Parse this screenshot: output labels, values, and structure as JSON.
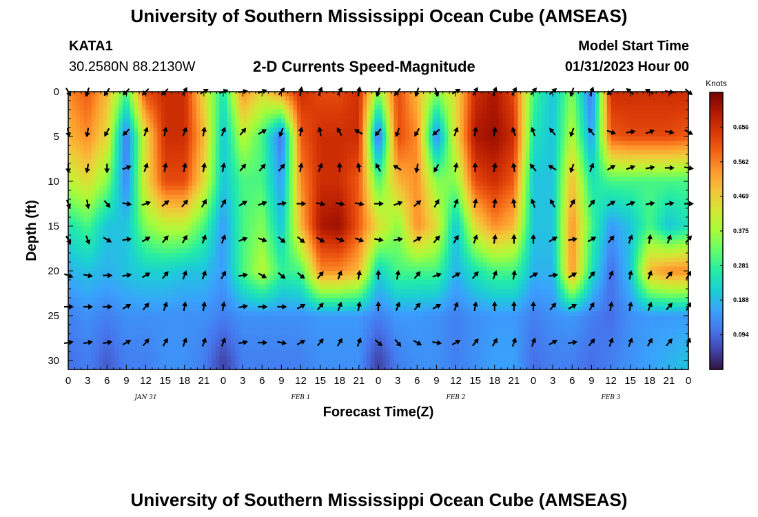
{
  "header": {
    "title": "University of Southern Mississippi Ocean Cube (AMSEAS)",
    "station_id": "KATA1",
    "coords": "30.2580N  88.2130W",
    "plot_title": "2-D Currents Speed-Magnitude",
    "model_start_label": "Model Start Time",
    "model_start_value": "01/31/2023 Hour 00"
  },
  "footer": {
    "title": "University of Southern Mississippi Ocean Cube (AMSEAS)"
  },
  "chart_data": {
    "type": "heatmap",
    "title": "2-D Currents Speed-Magnitude",
    "xlabel": "Forecast Time(Z)",
    "ylabel": "Depth (ft)",
    "xlim": [
      0,
      96
    ],
    "ylim": [
      31,
      0
    ],
    "x_ticks": [
      0,
      3,
      6,
      9,
      12,
      15,
      18,
      21,
      24,
      27,
      30,
      33,
      36,
      39,
      42,
      45,
      48,
      51,
      54,
      57,
      60,
      63,
      66,
      69,
      72,
      75,
      78,
      81,
      84,
      87,
      90,
      93,
      96
    ],
    "x_tick_labels": [
      "0",
      "3",
      "6",
      "9",
      "12",
      "15",
      "18",
      "21",
      "0",
      "3",
      "6",
      "9",
      "12",
      "15",
      "18",
      "21",
      "0",
      "3",
      "6",
      "9",
      "12",
      "15",
      "18",
      "21",
      "0",
      "3",
      "6",
      "9",
      "12",
      "15",
      "18",
      "21",
      "0"
    ],
    "y_ticks": [
      0,
      5,
      10,
      15,
      20,
      25,
      30
    ],
    "y_tick_labels": [
      "0",
      "5",
      "10",
      "15",
      "20",
      "25",
      "30"
    ],
    "day_labels": [
      {
        "label": "JAN 31",
        "x": 12
      },
      {
        "label": "FEB 1",
        "x": 36
      },
      {
        "label": "FEB 2",
        "x": 60
      },
      {
        "label": "FEB 3",
        "x": 84
      }
    ],
    "colorbar": {
      "unit": "Knots",
      "min": 0.0,
      "max": 0.75,
      "ticks": [
        0.094,
        0.188,
        0.281,
        0.375,
        0.469,
        0.562,
        0.656
      ],
      "tick_labels": [
        "0.094",
        "0.188",
        "0.281",
        "0.375",
        "0.469",
        "0.562",
        "0.656"
      ],
      "colormap": [
        "#30123b",
        "#4145ab",
        "#4675ed",
        "#39a2fc",
        "#1bcfd4",
        "#24eca6",
        "#61fc6c",
        "#a4fc3b",
        "#d1e834",
        "#f3c63a",
        "#fe9b2d",
        "#f36315",
        "#d93806",
        "#b11901",
        "#7a0402"
      ]
    },
    "speed_regions": {
      "time_anchors": [
        0,
        3,
        6,
        9,
        12,
        15,
        18,
        21,
        24,
        27,
        30,
        33,
        36,
        39,
        42,
        45,
        48,
        51,
        54,
        57,
        60,
        63,
        66,
        69,
        72,
        75,
        78,
        81,
        84,
        87,
        90,
        93,
        96
      ],
      "depth_anchors": [
        0,
        5,
        10,
        15,
        20,
        25,
        30
      ],
      "speed_knots": [
        [
          0.55,
          0.6,
          0.5,
          0.3,
          0.62,
          0.66,
          0.66,
          0.45,
          0.25,
          0.55,
          0.45,
          0.55,
          0.66,
          0.62,
          0.62,
          0.66,
          0.35,
          0.62,
          0.5,
          0.35,
          0.45,
          0.66,
          0.7,
          0.62,
          0.3,
          0.2,
          0.35,
          0.1,
          0.66,
          0.66,
          0.66,
          0.66,
          0.66
        ],
        [
          0.5,
          0.55,
          0.45,
          0.1,
          0.45,
          0.66,
          0.66,
          0.5,
          0.2,
          0.4,
          0.3,
          0.1,
          0.6,
          0.66,
          0.66,
          0.66,
          0.08,
          0.62,
          0.55,
          0.12,
          0.45,
          0.7,
          0.72,
          0.66,
          0.25,
          0.2,
          0.4,
          0.15,
          0.6,
          0.62,
          0.62,
          0.62,
          0.6
        ],
        [
          0.4,
          0.45,
          0.35,
          0.12,
          0.45,
          0.62,
          0.62,
          0.45,
          0.2,
          0.3,
          0.3,
          0.15,
          0.55,
          0.66,
          0.66,
          0.6,
          0.3,
          0.5,
          0.55,
          0.35,
          0.35,
          0.62,
          0.66,
          0.6,
          0.2,
          0.2,
          0.5,
          0.25,
          0.3,
          0.3,
          0.3,
          0.3,
          0.3
        ],
        [
          0.25,
          0.3,
          0.2,
          0.2,
          0.35,
          0.4,
          0.4,
          0.3,
          0.15,
          0.3,
          0.35,
          0.2,
          0.5,
          0.7,
          0.72,
          0.6,
          0.45,
          0.35,
          0.55,
          0.45,
          0.2,
          0.45,
          0.55,
          0.5,
          0.2,
          0.2,
          0.55,
          0.3,
          0.15,
          0.2,
          0.3,
          0.2,
          0.25
        ],
        [
          0.18,
          0.2,
          0.18,
          0.2,
          0.22,
          0.22,
          0.2,
          0.2,
          0.15,
          0.3,
          0.4,
          0.28,
          0.3,
          0.55,
          0.55,
          0.5,
          0.22,
          0.3,
          0.3,
          0.3,
          0.18,
          0.25,
          0.3,
          0.3,
          0.18,
          0.18,
          0.55,
          0.25,
          0.1,
          0.2,
          0.5,
          0.55,
          0.55
        ],
        [
          0.12,
          0.14,
          0.12,
          0.14,
          0.14,
          0.14,
          0.14,
          0.14,
          0.12,
          0.14,
          0.14,
          0.14,
          0.14,
          0.15,
          0.15,
          0.15,
          0.12,
          0.15,
          0.15,
          0.14,
          0.12,
          0.14,
          0.15,
          0.15,
          0.12,
          0.14,
          0.15,
          0.12,
          0.1,
          0.14,
          0.15,
          0.15,
          0.15
        ],
        [
          0.1,
          0.12,
          0.08,
          0.12,
          0.12,
          0.14,
          0.14,
          0.12,
          0.05,
          0.12,
          0.12,
          0.12,
          0.12,
          0.14,
          0.14,
          0.14,
          0.05,
          0.12,
          0.14,
          0.14,
          0.12,
          0.14,
          0.16,
          0.16,
          0.1,
          0.12,
          0.12,
          0.1,
          0.12,
          0.14,
          0.16,
          0.18,
          0.2
        ]
      ]
    },
    "vectors": {
      "times": [
        0,
        3,
        6,
        9,
        12,
        15,
        18,
        21,
        24,
        27,
        30,
        33,
        36,
        39,
        42,
        45,
        48,
        51,
        54,
        57,
        60,
        63,
        66,
        69,
        72,
        75,
        78,
        81,
        84,
        87,
        90,
        93,
        96
      ],
      "depths": [
        0,
        4.5,
        8.5,
        12.5,
        16.5,
        20.5,
        24,
        28
      ],
      "direction_deg_note": "arrow bearing in degrees clockwise from screen-up",
      "bearings": [
        [
          150,
          200,
          215,
          225,
          225,
          225,
          30,
          60,
          70,
          80,
          70,
          40,
          10,
          20,
          30,
          10,
          200,
          220,
          200,
          160,
          60,
          30,
          20,
          30,
          40,
          50,
          200,
          20,
          230,
          310,
          300,
          100,
          130
        ],
        [
          170,
          190,
          210,
          225,
          20,
          10,
          20,
          10,
          20,
          40,
          60,
          200,
          10,
          350,
          330,
          300,
          220,
          200,
          210,
          230,
          20,
          10,
          10,
          340,
          340,
          320,
          200,
          320,
          110,
          80,
          70,
          100,
          120
        ],
        [
          180,
          190,
          180,
          70,
          20,
          10,
          10,
          10,
          10,
          40,
          40,
          40,
          10,
          20,
          0,
          350,
          330,
          300,
          190,
          210,
          10,
          0,
          10,
          350,
          320,
          300,
          200,
          20,
          60,
          70,
          80,
          90,
          100
        ],
        [
          160,
          170,
          140,
          100,
          70,
          50,
          40,
          30,
          30,
          60,
          70,
          80,
          90,
          100,
          100,
          100,
          90,
          70,
          50,
          30,
          20,
          10,
          10,
          350,
          340,
          330,
          30,
          40,
          60,
          70,
          80,
          80,
          90
        ],
        [
          150,
          160,
          120,
          80,
          60,
          40,
          30,
          20,
          20,
          70,
          110,
          130,
          130,
          120,
          110,
          110,
          100,
          80,
          60,
          40,
          30,
          20,
          10,
          0,
          0,
          60,
          80,
          60,
          40,
          20,
          10,
          20,
          40
        ],
        [
          110,
          100,
          90,
          80,
          60,
          40,
          20,
          20,
          30,
          80,
          120,
          130,
          130,
          40,
          20,
          10,
          0,
          10,
          40,
          70,
          60,
          40,
          20,
          10,
          60,
          80,
          60,
          40,
          20,
          10,
          20,
          40,
          30
        ],
        [
          90,
          90,
          90,
          60,
          40,
          20,
          10,
          10,
          10,
          80,
          90,
          90,
          60,
          40,
          20,
          10,
          0,
          20,
          40,
          60,
          20,
          10,
          0,
          0,
          0,
          40,
          60,
          30,
          10,
          10,
          20,
          40,
          30
        ],
        [
          80,
          80,
          80,
          60,
          40,
          30,
          20,
          20,
          20,
          80,
          90,
          100,
          60,
          40,
          30,
          20,
          130,
          140,
          120,
          100,
          60,
          40,
          30,
          20,
          20,
          60,
          80,
          40,
          20,
          20,
          30,
          40,
          20
        ]
      ]
    }
  }
}
